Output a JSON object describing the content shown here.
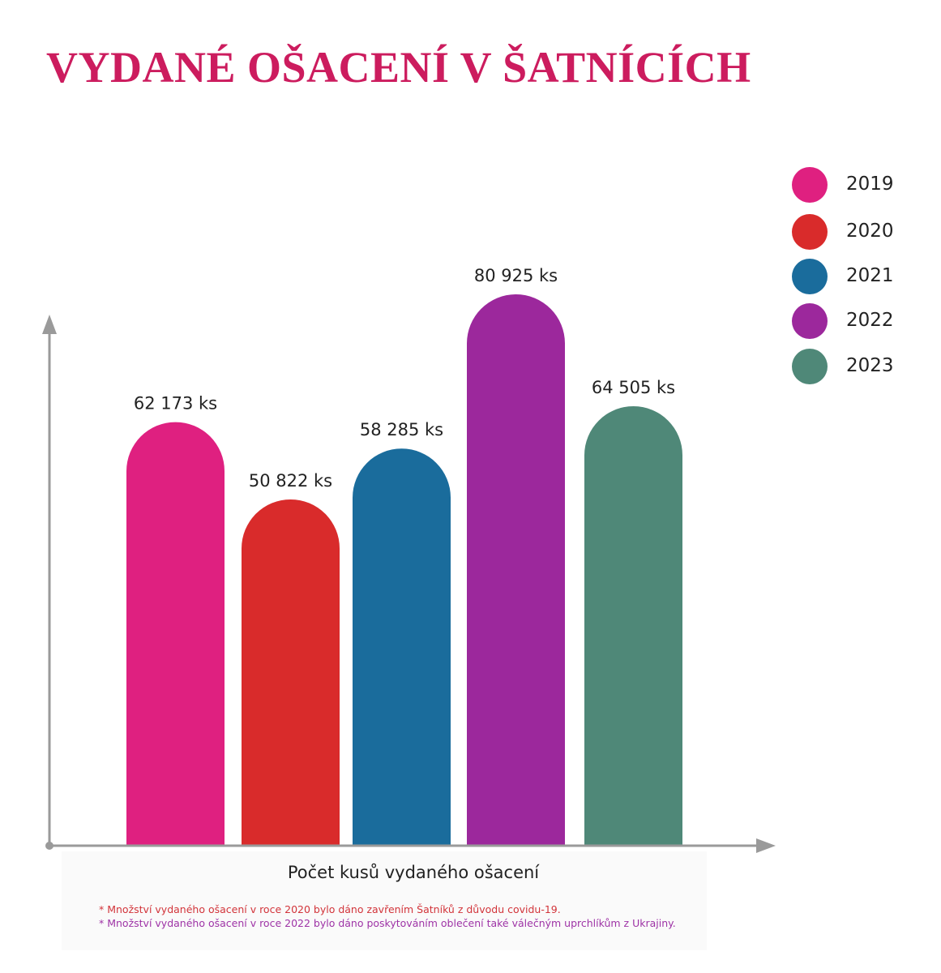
{
  "title": "VYDANÉ OŠACENÍ V ŠATNÍCÍCH",
  "colors": {
    "title": "#cc1c5e",
    "axis": "#9a9a9a",
    "footnote1": "#d2343a",
    "footnote2": "#9e33a6"
  },
  "chart_data": {
    "type": "bar",
    "title": "VYDANÉ OŠACENÍ V ŠATNÍCÍCH",
    "xlabel": "Počet kusů vydaného ošacení",
    "ylabel": "",
    "categories": [
      "2019",
      "2020",
      "2021",
      "2022",
      "2023"
    ],
    "values": [
      62173,
      50822,
      58285,
      80925,
      64505
    ],
    "value_labels": [
      "62 173 ks",
      "50 822 ks",
      "58 285 ks",
      "80 925 ks",
      "64 505 ks"
    ],
    "colors": [
      "#df2080",
      "#d92b2b",
      "#1a6c9c",
      "#9c289c",
      "#4f8878"
    ],
    "legend": {
      "position": "top-right",
      "entries": [
        "2019",
        "2020",
        "2021",
        "2022",
        "2023"
      ]
    },
    "grid": false
  },
  "footnotes": [
    "* Množství vydaného ošacení v roce 2020 bylo dáno zavřením Šatníků z důvodu covidu-19.",
    "* Množství vydaného ošacení v roce 2022 bylo dáno poskytováním oblečení také válečným uprchlíkům z Ukrajiny."
  ]
}
